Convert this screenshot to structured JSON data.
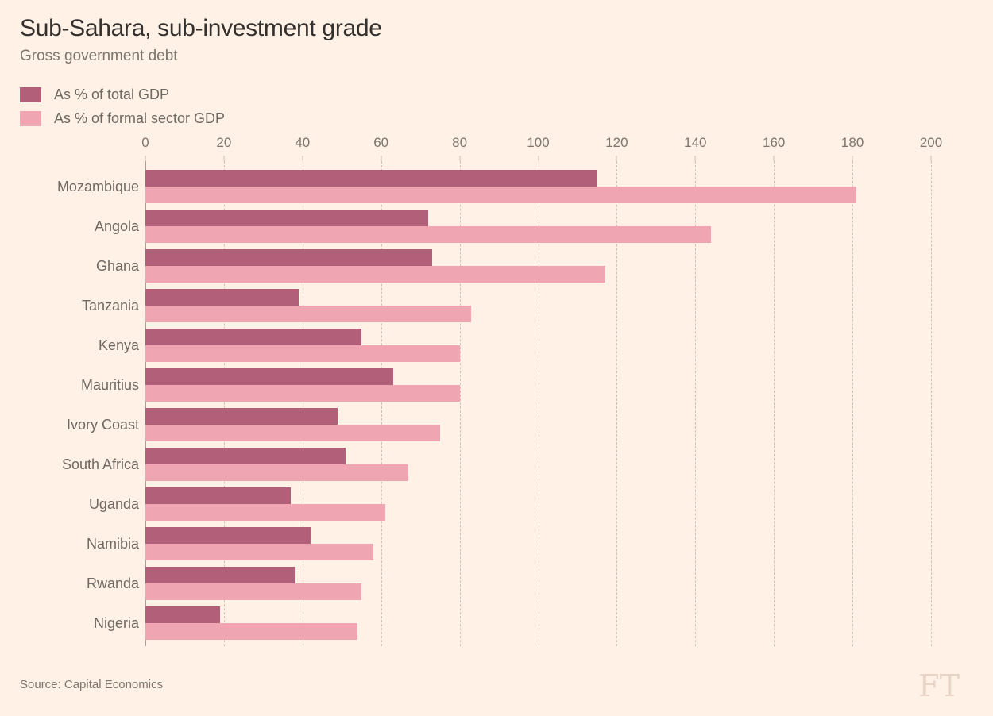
{
  "header": {
    "title": "Sub-Sahara, sub-investment grade",
    "subtitle": "Gross government debt"
  },
  "legend": {
    "items": [
      {
        "label": "As % of total GDP",
        "color": "#b25f79"
      },
      {
        "label": "As % of formal sector GDP",
        "color": "#f0a6b2"
      }
    ]
  },
  "chart_data": {
    "type": "bar",
    "orientation": "horizontal",
    "title": "Sub-Sahara, sub-investment grade",
    "subtitle": "Gross government debt",
    "xlabel": "",
    "ylabel": "",
    "xlim": [
      0,
      200
    ],
    "x_ticks": [
      0,
      20,
      40,
      60,
      80,
      100,
      120,
      140,
      160,
      180,
      200
    ],
    "grid": "dashed-vertical",
    "legend_position": "top-left",
    "categories": [
      "Mozambique",
      "Angola",
      "Ghana",
      "Tanzania",
      "Kenya",
      "Mauritius",
      "Ivory Coast",
      "South Africa",
      "Uganda",
      "Namibia",
      "Rwanda",
      "Nigeria"
    ],
    "series": [
      {
        "name": "As % of total GDP",
        "color": "#b25f79",
        "values": [
          115,
          72,
          73,
          39,
          55,
          63,
          49,
          51,
          37,
          42,
          38,
          19
        ]
      },
      {
        "name": "As % of formal sector GDP",
        "color": "#f0a6b2",
        "values": [
          181,
          144,
          117,
          83,
          80,
          80,
          75,
          67,
          61,
          58,
          55,
          54
        ]
      }
    ]
  },
  "footer": {
    "source": "Source: Capital Economics",
    "logo": "FT"
  },
  "colors": {
    "background": "#fff1e5",
    "title_text": "#33302e",
    "muted_text": "#7c766e",
    "label_text": "#6f6963",
    "gridline": "#d2c2b5",
    "axis_line": "#a89e93",
    "ft_logo": "#e9d5c8"
  }
}
